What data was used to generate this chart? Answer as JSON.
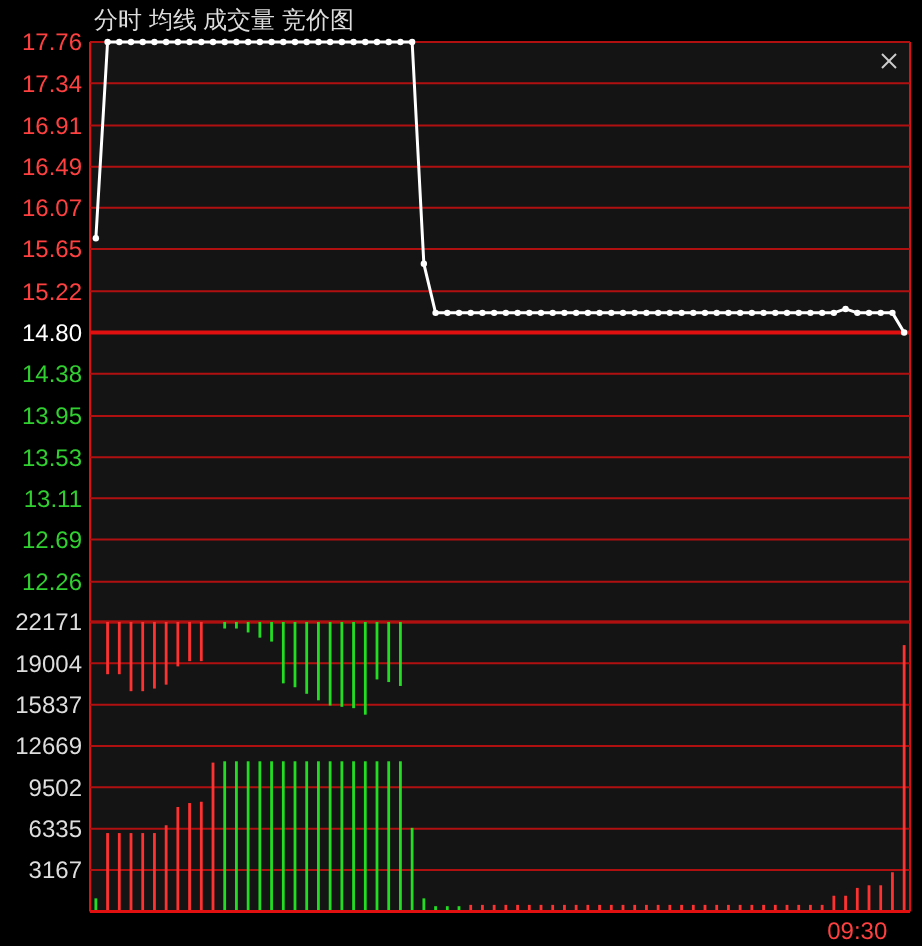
{
  "chart_data": [
    {
      "type": "line",
      "title": "分时 均线 成交量 竞价图",
      "categories": [
        null,
        null,
        null,
        null,
        null,
        null,
        null,
        null,
        null,
        null,
        null,
        null,
        null,
        null,
        null,
        null,
        null,
        null,
        null,
        null,
        null,
        null,
        null,
        null,
        null,
        null,
        null,
        null,
        null,
        null,
        null,
        null,
        null,
        null,
        null,
        null,
        null,
        null,
        null,
        null,
        null,
        null,
        null,
        null,
        null,
        null,
        null,
        null,
        null,
        null,
        null,
        null,
        null,
        null,
        null,
        null,
        null,
        null,
        null,
        null,
        null,
        null,
        null,
        null,
        null,
        null,
        null,
        null,
        null,
        null
      ],
      "series": [
        {
          "color": "#ffffff",
          "values": [
            15.76,
            17.76,
            17.76,
            17.76,
            17.76,
            17.76,
            17.76,
            17.76,
            17.76,
            17.76,
            17.76,
            17.76,
            17.76,
            17.76,
            17.76,
            17.76,
            17.76,
            17.76,
            17.76,
            17.76,
            17.76,
            17.76,
            17.76,
            17.76,
            17.76,
            17.76,
            17.76,
            17.76,
            15.5,
            15.0,
            15.0,
            15.0,
            15.0,
            15.0,
            15.0,
            15.0,
            15.0,
            15.0,
            15.0,
            15.0,
            15.0,
            15.0,
            15.0,
            15.0,
            15.0,
            15.0,
            15.0,
            15.0,
            15.0,
            15.0,
            15.0,
            15.0,
            15.0,
            15.0,
            15.0,
            15.0,
            15.0,
            15.0,
            15.0,
            15.0,
            15.0,
            15.0,
            15.0,
            15.0,
            15.04,
            15.0,
            15.0,
            15.0,
            15.0,
            14.8
          ]
        }
      ],
      "ylim": [
        11.85,
        17.76
      ],
      "yticks": [
        {
          "value": 17.76,
          "label": "17.76"
        },
        {
          "value": 17.34,
          "label": "17.34"
        },
        {
          "value": 16.91,
          "label": "16.91"
        },
        {
          "value": 16.49,
          "label": "16.49"
        },
        {
          "value": 16.07,
          "label": "16.07"
        },
        {
          "value": 15.65,
          "label": "15.65"
        },
        {
          "value": 15.22,
          "label": "15.22"
        },
        {
          "value": 14.8,
          "label": "14.80"
        },
        {
          "value": 14.38,
          "label": "14.38"
        },
        {
          "value": 13.95,
          "label": "13.95"
        },
        {
          "value": 13.53,
          "label": "13.53"
        },
        {
          "value": 13.11,
          "label": "13.11"
        },
        {
          "value": 12.69,
          "label": "12.69"
        },
        {
          "value": 12.26,
          "label": "12.26"
        }
      ],
      "ref_lines": [
        {
          "axis": "y",
          "value": 14.8,
          "color": "#e01010"
        }
      ],
      "grid": "y",
      "marker": "circle",
      "tick_labels": "y"
    },
    {
      "type": "bar",
      "categories": [
        null,
        null,
        null,
        null,
        null,
        null,
        null,
        null,
        null,
        null,
        null,
        null,
        null,
        null,
        null,
        null,
        null,
        null,
        null,
        null,
        null,
        null,
        null,
        null,
        null,
        null,
        null,
        null,
        null,
        null,
        null,
        null,
        null,
        null,
        null,
        null,
        null,
        null,
        null,
        null,
        null,
        null,
        null,
        null,
        null,
        null,
        null,
        null,
        null,
        null,
        null,
        null,
        null,
        null,
        null,
        null,
        null,
        null,
        null,
        null,
        null,
        null,
        null,
        null,
        null,
        "09:30",
        null,
        null,
        null,
        null
      ],
      "values": [
        1000,
        6000,
        6000,
        6000,
        6000,
        6000,
        6600,
        8000,
        8300,
        8400,
        11400,
        11500,
        11500,
        11500,
        11500,
        11500,
        11500,
        11500,
        11500,
        11500,
        11500,
        11500,
        11500,
        11500,
        11500,
        11500,
        11500,
        6400,
        1000,
        400,
        400,
        400,
        500,
        500,
        500,
        500,
        500,
        500,
        500,
        500,
        500,
        500,
        500,
        500,
        500,
        500,
        500,
        500,
        500,
        500,
        500,
        500,
        500,
        500,
        500,
        500,
        500,
        500,
        500,
        500,
        500,
        500,
        500,
        1200,
        1200,
        1800,
        2000,
        2000,
        3000,
        20400
      ],
      "colors": [
        "#22dd22",
        "#ff3232",
        "#ff3232",
        "#ff3232",
        "#ff3232",
        "#ff3232",
        "#ff3232",
        "#ff3232",
        "#ff3232",
        "#ff3232",
        "#ff3232",
        "#22dd22",
        "#22dd22",
        "#22dd22",
        "#22dd22",
        "#22dd22",
        "#22dd22",
        "#22dd22",
        "#22dd22",
        "#22dd22",
        "#22dd22",
        "#22dd22",
        "#22dd22",
        "#22dd22",
        "#22dd22",
        "#22dd22",
        "#22dd22",
        "#22dd22",
        "#22dd22",
        "#22dd22",
        "#22dd22",
        "#22dd22",
        "#ff3232",
        "#ff3232",
        "#ff3232",
        "#ff3232",
        "#ff3232",
        "#ff3232",
        "#ff3232",
        "#ff3232",
        "#ff3232",
        "#ff3232",
        "#ff3232",
        "#ff3232",
        "#ff3232",
        "#ff3232",
        "#ff3232",
        "#ff3232",
        "#ff3232",
        "#ff3232",
        "#ff3232",
        "#ff3232",
        "#ff3232",
        "#ff3232",
        "#ff3232",
        "#ff3232",
        "#ff3232",
        "#ff3232",
        "#ff3232",
        "#ff3232",
        "#ff3232",
        "#ff3232",
        "#ff3232",
        "#ff3232",
        "#ff3232",
        "#ff3232",
        "#ff3232",
        "#ff3232",
        "#ff3232",
        "#ff3232"
      ],
      "ylim": [
        0,
        22171
      ],
      "yticks": [
        3167,
        6335,
        9502,
        12669,
        15837,
        19004,
        22171
      ],
      "grid": "y"
    },
    {
      "type": "bar",
      "categories": [
        null,
        null,
        null,
        null,
        null,
        null,
        null,
        null,
        null,
        null,
        null,
        null,
        null,
        null,
        null,
        null,
        null,
        null,
        null,
        null,
        null,
        null,
        null,
        null,
        null,
        null,
        null,
        null,
        null,
        null,
        null,
        null,
        null,
        null,
        null,
        null,
        null,
        null,
        null,
        null,
        null,
        null,
        null,
        null,
        null,
        null,
        null,
        null,
        null,
        null,
        null,
        null,
        null,
        null,
        null,
        null,
        null,
        null,
        null,
        null,
        null,
        null,
        null,
        null,
        null,
        null,
        null,
        null,
        null,
        null
      ],
      "values": [
        null,
        -4000,
        -4000,
        -5300,
        -5300,
        -5100,
        -4800,
        -3400,
        -3000,
        -3000,
        null,
        -500,
        -500,
        -800,
        -1200,
        -1500,
        -4700,
        -5000,
        -5500,
        -6000,
        -6400,
        -6500,
        -6600,
        -7100,
        -4400,
        -4600,
        -4900,
        null,
        null,
        null,
        null,
        null,
        null,
        null,
        null,
        null,
        null,
        null,
        null,
        null,
        null,
        null,
        null,
        null,
        null,
        null,
        null,
        null,
        null,
        null,
        null,
        null,
        null,
        null,
        null,
        null,
        null,
        null,
        null,
        null,
        null,
        null,
        null,
        null,
        null,
        null,
        null,
        null,
        null,
        null
      ],
      "base": [
        null,
        22171,
        22171,
        22171,
        22171,
        22171,
        22171,
        22171,
        22171,
        22171,
        null,
        22171,
        22171,
        22171,
        22171,
        22171,
        22171,
        22171,
        22171,
        22171,
        22171,
        22171,
        22171,
        22171,
        22171,
        22171,
        22171,
        null,
        null,
        null,
        null,
        null,
        null,
        null,
        null,
        null,
        null,
        null,
        null,
        null,
        null,
        null,
        null,
        null,
        null,
        null,
        null,
        null,
        null,
        null,
        null,
        null,
        null,
        null,
        null,
        null,
        null,
        null,
        null,
        null,
        null,
        null,
        null,
        null,
        null,
        null,
        null,
        null,
        null,
        null
      ],
      "colors": [
        null,
        "#ff3232",
        "#ff3232",
        "#ff3232",
        "#ff3232",
        "#ff3232",
        "#ff3232",
        "#ff3232",
        "#ff3232",
        "#ff3232",
        null,
        "#22dd22",
        "#22dd22",
        "#22dd22",
        "#22dd22",
        "#22dd22",
        "#22dd22",
        "#22dd22",
        "#22dd22",
        "#22dd22",
        "#22dd22",
        "#22dd22",
        "#22dd22",
        "#22dd22",
        "#22dd22",
        "#22dd22",
        "#22dd22",
        null,
        null,
        null,
        null,
        null,
        null,
        null,
        null,
        null,
        null,
        null,
        null,
        null,
        null,
        null,
        null,
        null,
        null,
        null,
        null,
        null,
        null,
        null,
        null,
        null,
        null,
        null,
        null,
        null,
        null,
        null,
        null,
        null,
        null,
        null,
        null,
        null,
        null,
        null,
        null,
        null,
        null,
        null
      ],
      "ylim": [
        0,
        22171
      ],
      "tick_labels": false
    }
  ]
}
